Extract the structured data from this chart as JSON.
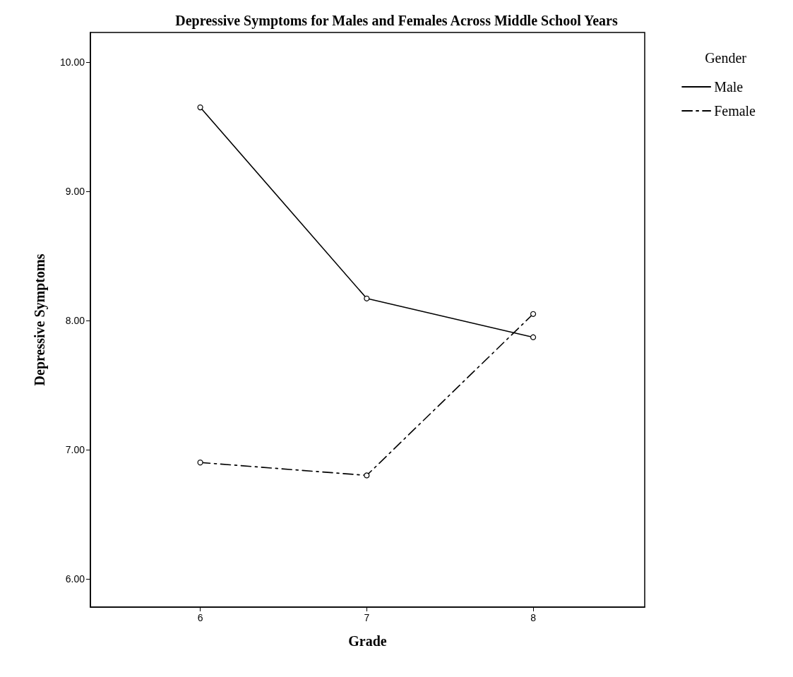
{
  "chart_data": {
    "type": "line",
    "title": "Depressive Symptoms for Males and Females Across Middle School Years",
    "xlabel": "Grade",
    "ylabel": "Depressive Symptoms",
    "legend_title": "Gender",
    "x": [
      6,
      7,
      8
    ],
    "series": [
      {
        "name": "Male",
        "color": "#000000",
        "line_style": "solid",
        "values": [
          9.65,
          8.17,
          7.87
        ]
      },
      {
        "name": "Female",
        "color": "#000000",
        "line_style": "dashed",
        "values": [
          6.9,
          6.8,
          8.05
        ]
      }
    ],
    "xlim": [
      5.34,
      8.67
    ],
    "xticks": [
      6,
      7,
      8
    ],
    "ylim": [
      5.78,
      10.23
    ],
    "yticks": [
      {
        "value": 6,
        "label": "6.00"
      },
      {
        "value": 7,
        "label": "7.00"
      },
      {
        "value": 8,
        "label": "8.00"
      },
      {
        "value": 9,
        "label": "9.00"
      },
      {
        "value": 10,
        "label": "10.00"
      }
    ],
    "grid": false,
    "legend": "top right",
    "marker": "circle"
  }
}
